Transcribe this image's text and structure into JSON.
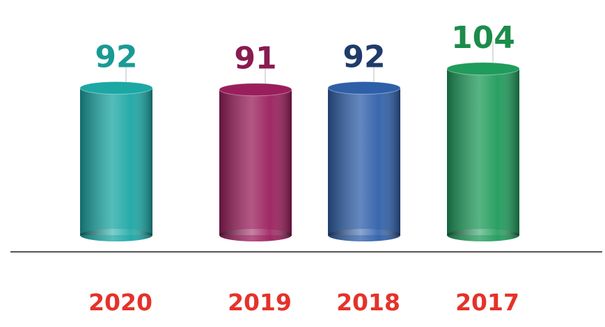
{
  "chart_data": {
    "type": "bar",
    "categories": [
      "2020",
      "2019",
      "2018",
      "2017"
    ],
    "values": [
      92,
      91,
      92,
      104
    ],
    "colors": [
      "#1ba7a4",
      "#9a1e5c",
      "#2f5fa9",
      "#1f9b5b"
    ],
    "label_colors": [
      "#199a96",
      "#8a1a50",
      "#1e3b6b",
      "#1c8c4a"
    ]
  }
}
